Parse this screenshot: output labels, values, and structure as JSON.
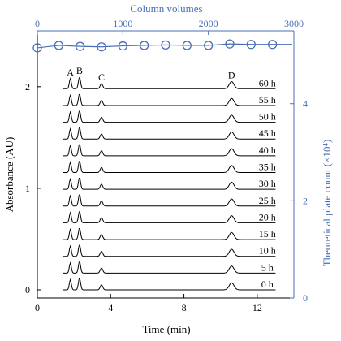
{
  "chart_data": {
    "type": "line",
    "title": "",
    "xlabel": "Time (min)",
    "ylabel": "Absorbance (AU)",
    "x2label": "Column volumes",
    "y2label": "Theoretical plate count (×10⁴)",
    "xlim": [
      0,
      14
    ],
    "ylim": [
      -0.08,
      2.55
    ],
    "x2lim": [
      0,
      3000
    ],
    "y2lim": [
      0,
      5.5
    ],
    "x_ticks": [
      "0",
      "4",
      "8",
      "12"
    ],
    "x_tick_values": [
      0,
      4,
      8,
      12
    ],
    "y_ticks": [
      "0",
      "1",
      "2"
    ],
    "y_tick_values": [
      0,
      1,
      2
    ],
    "x2_ticks": [
      "0",
      "1000",
      "2000",
      "3000"
    ],
    "x2_tick_values": [
      0,
      1000,
      2000,
      3000
    ],
    "y2_ticks": [
      "0",
      "2",
      "4"
    ],
    "y2_tick_values": [
      0,
      2,
      4
    ],
    "grid": false,
    "colors": {
      "chromatogram": "#000000",
      "secondary_axis": "#4a6fb5"
    },
    "peaks": [
      {
        "label": "A",
        "time": 1.8,
        "height": 0.1,
        "sigma": 0.055
      },
      {
        "label": "B",
        "time": 2.3,
        "height": 0.115,
        "sigma": 0.06
      },
      {
        "label": "C",
        "time": 3.5,
        "height": 0.05,
        "sigma": 0.07
      },
      {
        "label": "D",
        "time": 10.6,
        "height": 0.07,
        "sigma": 0.13
      }
    ],
    "trace_start": 1.4,
    "trace_end": 13.0,
    "series": [
      {
        "name": "0 h",
        "offset": 0.0
      },
      {
        "name": "5 h",
        "offset": 0.165
      },
      {
        "name": "10 h",
        "offset": 0.33
      },
      {
        "name": "15 h",
        "offset": 0.495
      },
      {
        "name": "20 h",
        "offset": 0.66
      },
      {
        "name": "25 h",
        "offset": 0.825
      },
      {
        "name": "30 h",
        "offset": 0.99
      },
      {
        "name": "35 h",
        "offset": 1.155
      },
      {
        "name": "40 h",
        "offset": 1.32
      },
      {
        "name": "45 h",
        "offset": 1.485
      },
      {
        "name": "50 h",
        "offset": 1.65
      },
      {
        "name": "55 h",
        "offset": 1.815
      },
      {
        "name": "60 h",
        "offset": 1.98
      }
    ],
    "plate_count_series": {
      "x": [
        0,
        250,
        500,
        750,
        1000,
        1250,
        1500,
        1750,
        2000,
        2250,
        2500,
        2750
      ],
      "y": [
        5.15,
        5.2,
        5.18,
        5.17,
        5.19,
        5.2,
        5.21,
        5.2,
        5.2,
        5.23,
        5.22,
        5.22
      ]
    }
  }
}
